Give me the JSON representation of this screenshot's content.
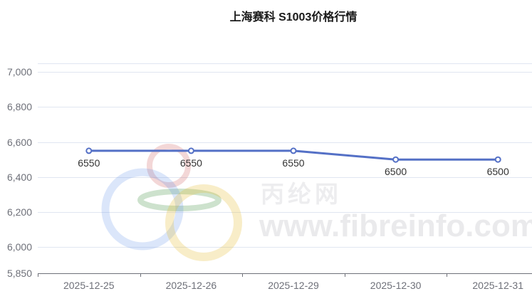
{
  "watermark": {
    "brand": "丙纶网",
    "url": "www.fibreinfo.com",
    "brand_color": "#ededef",
    "url_color": "#eaeaec",
    "logo_colors": {
      "red": "#c84a4a",
      "green": "#5aa05a",
      "blue": "#5a8ce6",
      "yellow": "#e6be32"
    }
  },
  "chart_data": {
    "type": "line",
    "title": "上海赛科 S1003价格行情",
    "categories": [
      "2025-12-25",
      "2025-12-26",
      "2025-12-29",
      "2025-12-30",
      "2025-12-31"
    ],
    "values": [
      6550,
      6550,
      6550,
      6500,
      6500
    ],
    "data_labels": [
      "6550",
      "6550",
      "6550",
      "6500",
      "6500"
    ],
    "y_ticks": [
      {
        "value": 7000,
        "label": "7,000"
      },
      {
        "value": 6800,
        "label": "6,800"
      },
      {
        "value": 6600,
        "label": "6,600"
      },
      {
        "value": 6400,
        "label": "6,400"
      },
      {
        "value": 6200,
        "label": "6,200"
      },
      {
        "value": 6000,
        "label": "6,000"
      },
      {
        "value": 5850,
        "label": "5,850"
      }
    ],
    "grid_values": [
      7050,
      7000,
      6800,
      6600,
      6400,
      6200,
      6000
    ],
    "ylim": [
      5850,
      7050
    ],
    "xlabel": "",
    "ylabel": "",
    "grid": true,
    "legend": false,
    "colors": {
      "line": "#5470c6",
      "point_fill": "#ffffff",
      "grid": "#e0e6f1",
      "axis": "#6e7079",
      "axis_label": "#6e7079",
      "data_label": "#333333",
      "title": "#1a1a1a"
    }
  }
}
